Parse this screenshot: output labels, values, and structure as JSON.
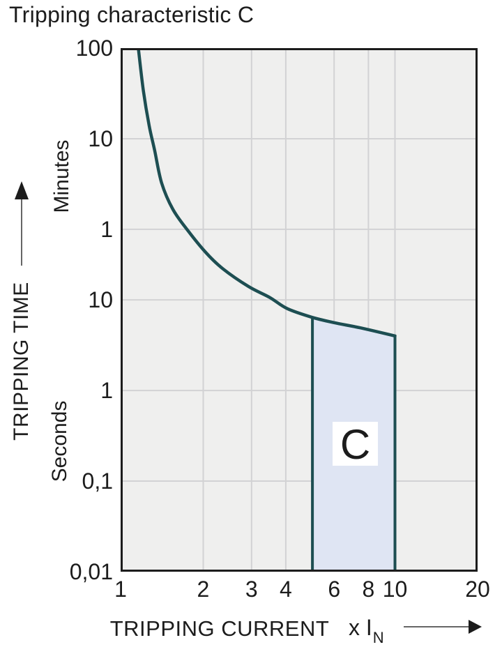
{
  "title": "Tripping characteristic C",
  "colors": {
    "curve": "#1d4e52",
    "region_fill": "#dfe5f3",
    "region_border": "#1d4e52",
    "plot_bg": "#efefee",
    "grid": "#d2d2d4",
    "frame": "#1c1c1c",
    "text": "#1c1c1c",
    "arrow_shaft": "#666666"
  },
  "chart_data": {
    "type": "line",
    "title": "Tripping characteristic C",
    "x_scale": "log",
    "y_scale": "log",
    "x_axis": {
      "title": "TRIPPING CURRENT",
      "unit_prefix": "x I",
      "unit_sub": "N",
      "range": [
        1,
        20
      ],
      "ticks": [
        {
          "label": "1",
          "value": 1
        },
        {
          "label": "2",
          "value": 2
        },
        {
          "label": "3",
          "value": 3
        },
        {
          "label": "4",
          "value": 4
        },
        {
          "label": "6",
          "value": 6
        },
        {
          "label": "8",
          "value": 8
        },
        {
          "label": "10",
          "value": 10
        },
        {
          "label": "20",
          "value": 20
        }
      ],
      "grid_values": [
        2,
        3,
        4,
        6,
        8,
        10
      ]
    },
    "y_axis": {
      "title": "TRIPPING TIME",
      "unit_upper": "Minutes",
      "unit_lower": "Seconds",
      "range_seconds": [
        0.01,
        6000
      ],
      "ticks": [
        {
          "label": "100",
          "seconds": 6000
        },
        {
          "label": "10",
          "seconds": 600
        },
        {
          "label": "1",
          "seconds": 60
        },
        {
          "label": "10",
          "seconds": 10
        },
        {
          "label": "1",
          "seconds": 1
        },
        {
          "label": "0,1",
          "seconds": 0.1
        },
        {
          "label": "0,01",
          "seconds": 0.01
        }
      ],
      "grid_seconds": [
        600,
        60,
        10,
        1,
        0.1
      ]
    },
    "curve": {
      "name": "C-characteristic tripping curve",
      "points": [
        [
          1.16,
          6000
        ],
        [
          1.21,
          2040
        ],
        [
          1.27,
          840
        ],
        [
          1.33,
          450
        ],
        [
          1.41,
          196
        ],
        [
          1.55,
          100
        ],
        [
          1.76,
          58
        ],
        [
          2.04,
          33.5
        ],
        [
          2.36,
          22
        ],
        [
          2.93,
          14
        ],
        [
          3.5,
          10.6
        ],
        [
          4.05,
          8.0
        ],
        [
          5.0,
          6.4
        ],
        [
          6.0,
          5.6
        ],
        [
          7.5,
          4.9
        ],
        [
          10.0,
          4.0
        ]
      ]
    },
    "region": {
      "label": "C",
      "x_range": [
        5,
        10
      ],
      "bottom_seconds": 0.01
    }
  }
}
